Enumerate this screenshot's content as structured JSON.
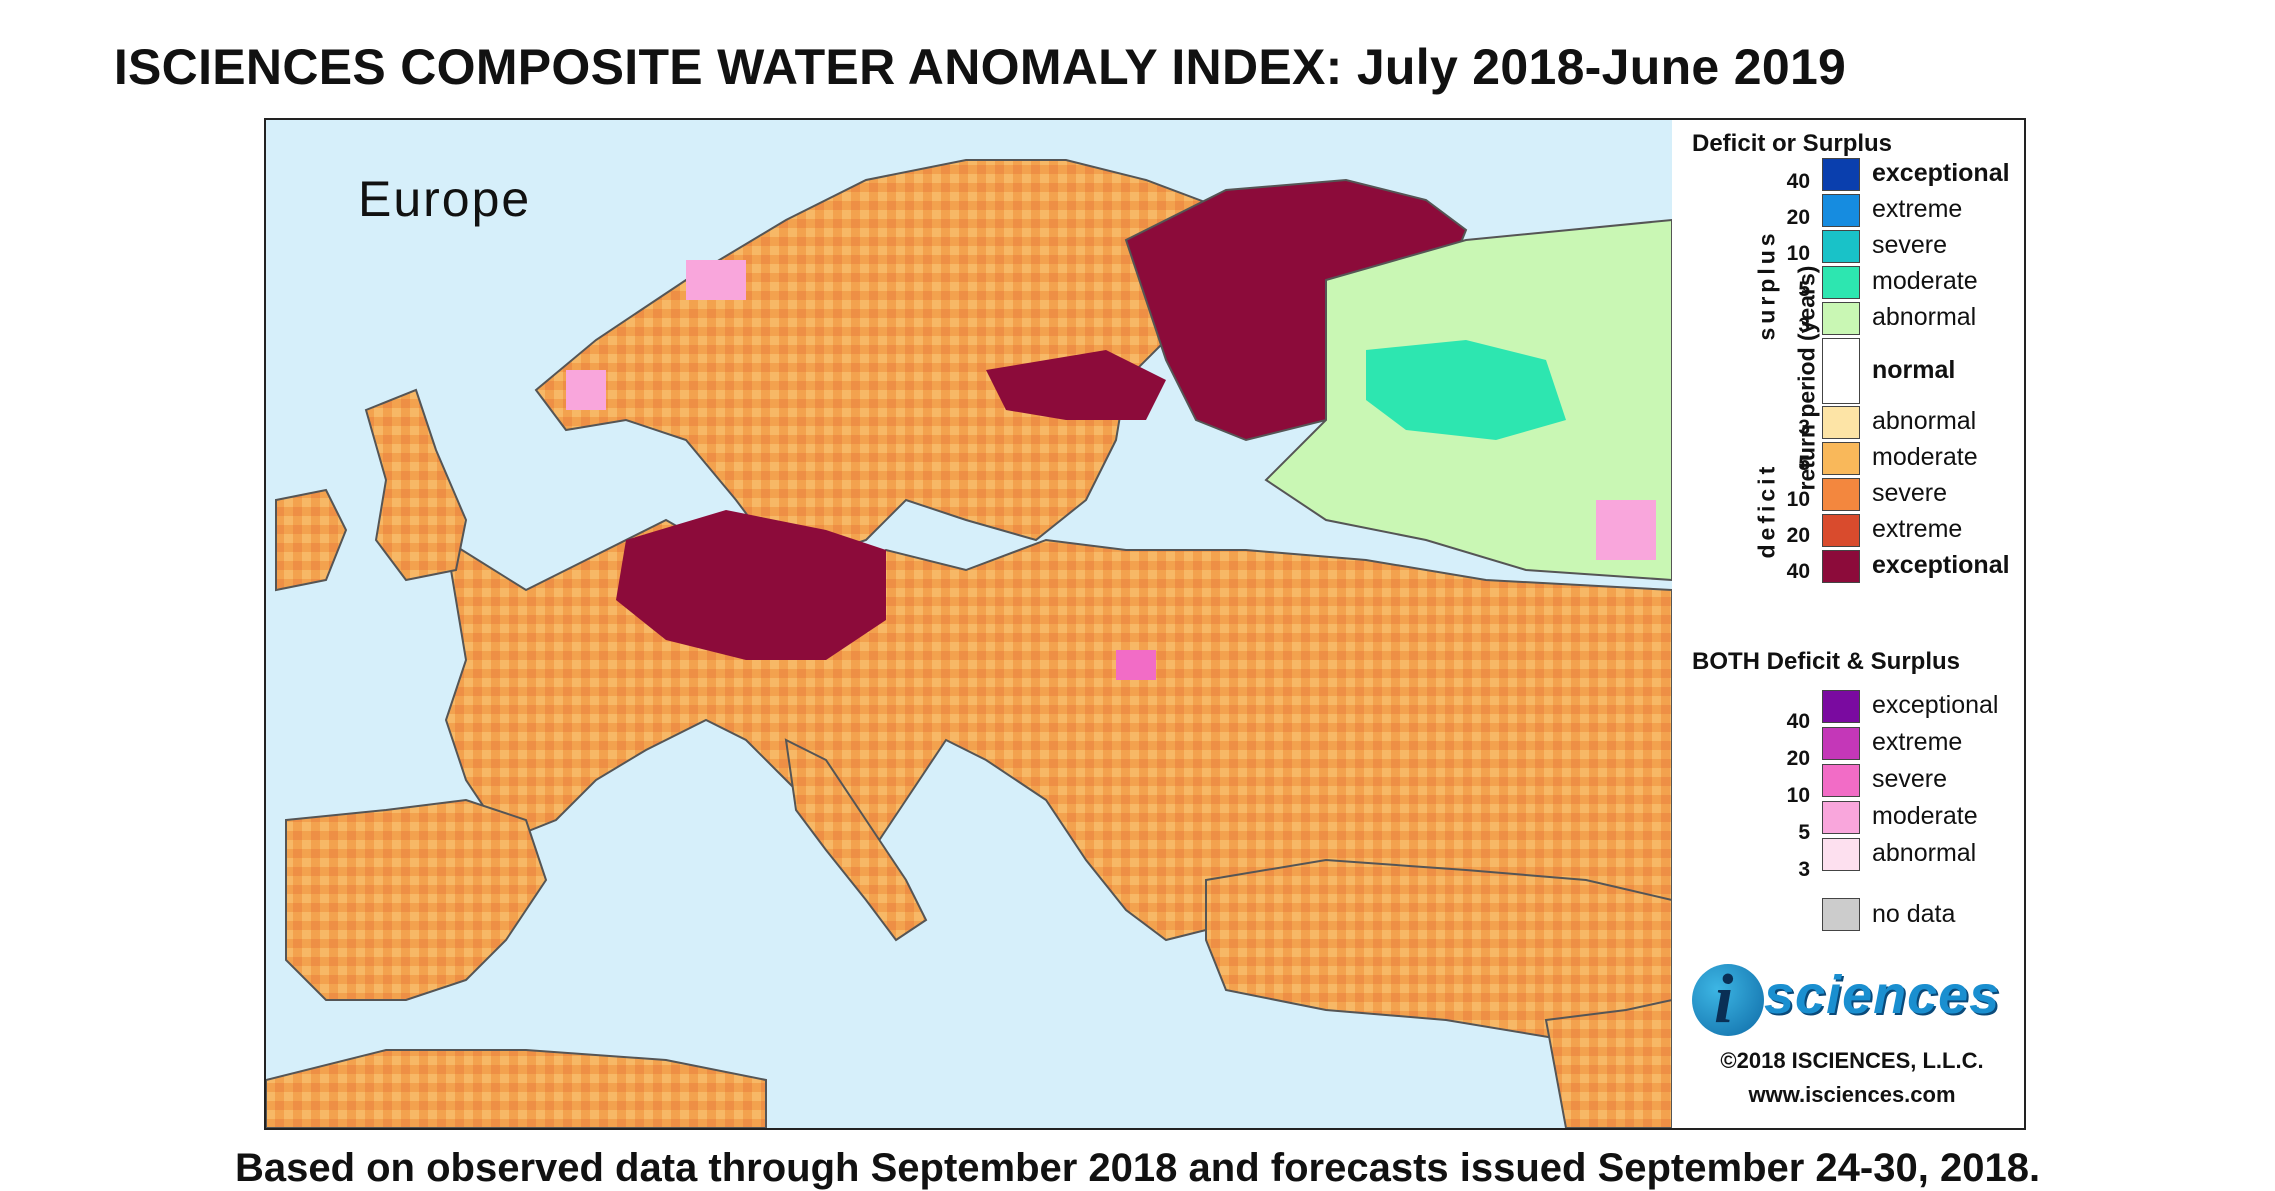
{
  "title": "ISCIENCES COMPOSITE WATER ANOMALY INDEX: July 2018-June 2019",
  "region_label": "Europe",
  "footer": "Based on observed data through September 2018 and forecasts issued September 24-30, 2018.",
  "legend": {
    "deficit_surplus_heading": "Deficit or Surplus",
    "surplus_label": "surplus",
    "deficit_label": "deficit",
    "return_period_label": "return period (years)",
    "surplus_classes": [
      {
        "label": "exceptional",
        "color": "#0a3fae",
        "bold": true
      },
      {
        "label": "extreme",
        "color": "#168ce0",
        "bold": false
      },
      {
        "label": "severe",
        "color": "#19c2c8",
        "bold": false
      },
      {
        "label": "moderate",
        "color": "#2de6b0",
        "bold": false
      },
      {
        "label": "abnormal",
        "color": "#c9f7b4",
        "bold": false
      }
    ],
    "surplus_ticks": [
      "40",
      "20",
      "10",
      "5",
      "3"
    ],
    "normal": {
      "label": "normal",
      "color": "#ffffff"
    },
    "deficit_classes": [
      {
        "label": "abnormal",
        "color": "#fde4a6",
        "bold": false
      },
      {
        "label": "moderate",
        "color": "#f9b85a",
        "bold": false
      },
      {
        "label": "severe",
        "color": "#f3873e",
        "bold": false
      },
      {
        "label": "extreme",
        "color": "#d94b2d",
        "bold": false
      },
      {
        "label": "exceptional",
        "color": "#8c0b3a",
        "bold": true
      }
    ],
    "deficit_ticks": [
      "3",
      "5",
      "10",
      "20",
      "40"
    ],
    "both_heading": "BOTH Deficit & Surplus",
    "both_classes": [
      {
        "label": "exceptional",
        "color": "#7a0aa0"
      },
      {
        "label": "extreme",
        "color": "#c437b8"
      },
      {
        "label": "severe",
        "color": "#f26cc6"
      },
      {
        "label": "moderate",
        "color": "#f9a6dc"
      },
      {
        "label": "abnormal",
        "color": "#fde0ef"
      }
    ],
    "both_ticks": [
      "40",
      "20",
      "10",
      "5",
      "3"
    ],
    "no_data": {
      "label": "no data",
      "color": "#cccccc"
    }
  },
  "logo": {
    "mark": "i",
    "text": "sciences"
  },
  "copyright": "©2018 ISCIENCES, L.L.C.",
  "url": "www.isciences.com"
}
